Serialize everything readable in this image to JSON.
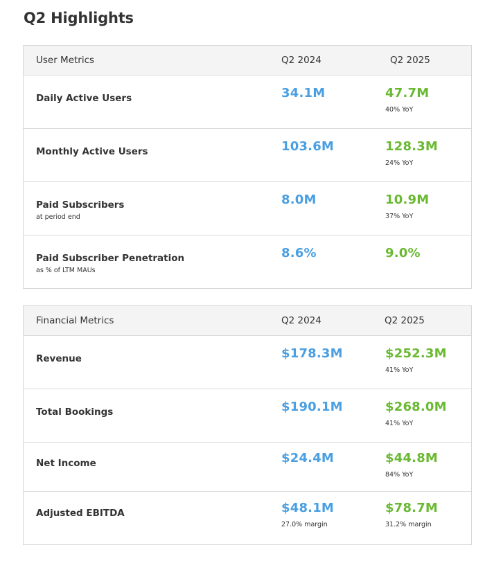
{
  "page": {
    "title": "Q2 Highlights"
  },
  "user_metrics": {
    "header": {
      "label": "User Metrics",
      "col1": "Q2 2024",
      "col2": "Q2 2025"
    },
    "rows": [
      {
        "label": "Daily Active Users",
        "sublabel": "",
        "q2_2024": "34.1M",
        "q2_2025": "47.7M",
        "note": "40% YoY"
      },
      {
        "label": "Monthly Active Users",
        "sublabel": "",
        "q2_2024": "103.6M",
        "q2_2025": "128.3M",
        "note": "24% YoY"
      },
      {
        "label": "Paid Subscribers",
        "sublabel": "at period end",
        "q2_2024": "8.0M",
        "q2_2025": "10.9M",
        "note": "37% YoY"
      },
      {
        "label": "Paid Subscriber Penetration",
        "sublabel": "as % of LTM MAUs",
        "q2_2024": "8.6%",
        "q2_2025": "9.0%",
        "note": ""
      }
    ]
  },
  "financial_metrics": {
    "header": {
      "label": "Financial Metrics",
      "col1": "Q2 2024",
      "col2": "Q2 2025"
    },
    "rows": [
      {
        "label": "Revenue",
        "q2_2024": "$178.3M",
        "q2_2025": "$252.3M",
        "note": "41% YoY",
        "note_prev": ""
      },
      {
        "label": "Total Bookings",
        "q2_2024": "$190.1M",
        "q2_2025": "$268.0M",
        "note": "41% YoY",
        "note_prev": ""
      },
      {
        "label": "Net Income",
        "q2_2024": "$24.4M",
        "q2_2025": "$44.8M",
        "note": "84% YoY",
        "note_prev": ""
      },
      {
        "label": "Adjusted EBITDA",
        "q2_2024": "$48.1M",
        "q2_2025": "$78.7M",
        "note": "31.2% margin",
        "note_prev": "27.0% margin"
      }
    ]
  },
  "colors": {
    "prev_value": "#4a9fe2",
    "curr_value": "#6ab932",
    "header_bg": "#f4f4f4",
    "border": "#d6d6d6"
  }
}
